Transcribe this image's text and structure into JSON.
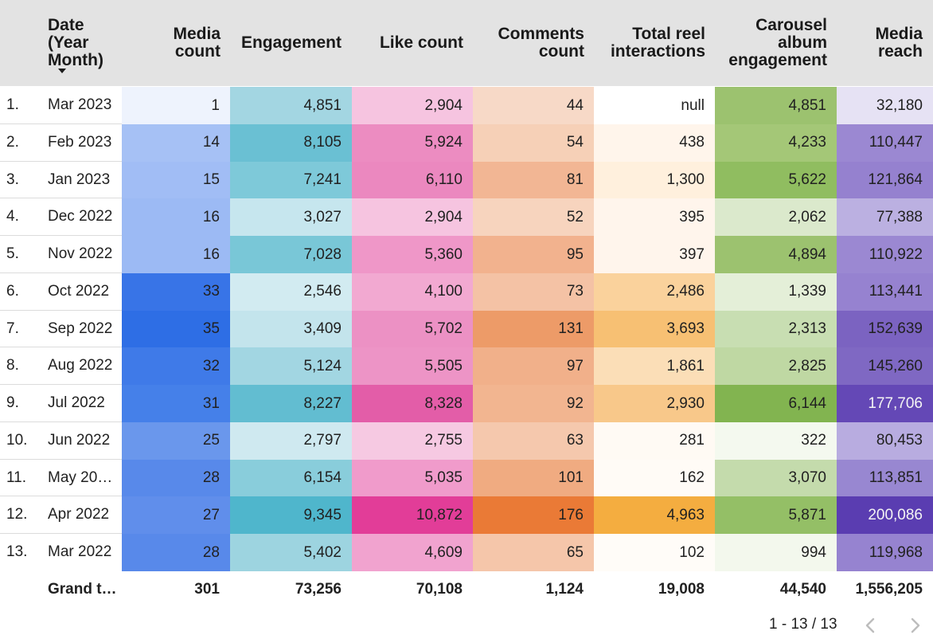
{
  "headers": {
    "date": "Date\n(Year\nMonth)",
    "media_count": "Media\ncount",
    "engagement": "Engagement",
    "like_count": "Like count",
    "comments_count": "Comments\ncount",
    "total_reel_interactions": "Total reel\ninteractions",
    "carousel_album_engagement": "Carousel\nalbum\nengagement",
    "media_reach": "Media\nreach"
  },
  "columns": [
    "media_count",
    "engagement",
    "like_count",
    "comments_count",
    "total_reel_interactions",
    "carousel_album_engagement",
    "media_reach"
  ],
  "rows": [
    {
      "index": "1.",
      "date": "Mar 2023",
      "media_count": "1",
      "engagement": "4,851",
      "like_count": "2,904",
      "comments_count": "44",
      "total_reel_interactions": "null",
      "carousel_album_engagement": "4,851",
      "media_reach": "32,180"
    },
    {
      "index": "2.",
      "date": "Feb 2023",
      "media_count": "14",
      "engagement": "8,105",
      "like_count": "5,924",
      "comments_count": "54",
      "total_reel_interactions": "438",
      "carousel_album_engagement": "4,233",
      "media_reach": "110,447"
    },
    {
      "index": "3.",
      "date": "Jan 2023",
      "media_count": "15",
      "engagement": "7,241",
      "like_count": "6,110",
      "comments_count": "81",
      "total_reel_interactions": "1,300",
      "carousel_album_engagement": "5,622",
      "media_reach": "121,864"
    },
    {
      "index": "4.",
      "date": "Dec 2022",
      "media_count": "16",
      "engagement": "3,027",
      "like_count": "2,904",
      "comments_count": "52",
      "total_reel_interactions": "395",
      "carousel_album_engagement": "2,062",
      "media_reach": "77,388"
    },
    {
      "index": "5.",
      "date": "Nov 2022",
      "media_count": "16",
      "engagement": "7,028",
      "like_count": "5,360",
      "comments_count": "95",
      "total_reel_interactions": "397",
      "carousel_album_engagement": "4,894",
      "media_reach": "110,922"
    },
    {
      "index": "6.",
      "date": "Oct 2022",
      "media_count": "33",
      "engagement": "2,546",
      "like_count": "4,100",
      "comments_count": "73",
      "total_reel_interactions": "2,486",
      "carousel_album_engagement": "1,339",
      "media_reach": "113,441"
    },
    {
      "index": "7.",
      "date": "Sep 2022",
      "media_count": "35",
      "engagement": "3,409",
      "like_count": "5,702",
      "comments_count": "131",
      "total_reel_interactions": "3,693",
      "carousel_album_engagement": "2,313",
      "media_reach": "152,639"
    },
    {
      "index": "8.",
      "date": "Aug 2022",
      "media_count": "32",
      "engagement": "5,124",
      "like_count": "5,505",
      "comments_count": "97",
      "total_reel_interactions": "1,861",
      "carousel_album_engagement": "2,825",
      "media_reach": "145,260"
    },
    {
      "index": "9.",
      "date": "Jul 2022",
      "media_count": "31",
      "engagement": "8,227",
      "like_count": "8,328",
      "comments_count": "92",
      "total_reel_interactions": "2,930",
      "carousel_album_engagement": "6,144",
      "media_reach": "177,706"
    },
    {
      "index": "10.",
      "date": "Jun 2022",
      "media_count": "25",
      "engagement": "2,797",
      "like_count": "2,755",
      "comments_count": "63",
      "total_reel_interactions": "281",
      "carousel_album_engagement": "322",
      "media_reach": "80,453"
    },
    {
      "index": "11.",
      "date": "May 20…",
      "media_count": "28",
      "engagement": "6,154",
      "like_count": "5,035",
      "comments_count": "101",
      "total_reel_interactions": "162",
      "carousel_album_engagement": "3,070",
      "media_reach": "113,851"
    },
    {
      "index": "12.",
      "date": "Apr 2022",
      "media_count": "27",
      "engagement": "9,345",
      "like_count": "10,872",
      "comments_count": "176",
      "total_reel_interactions": "4,963",
      "carousel_album_engagement": "5,871",
      "media_reach": "200,086"
    },
    {
      "index": "13.",
      "date": "Mar 2022",
      "media_count": "28",
      "engagement": "5,402",
      "like_count": "4,609",
      "comments_count": "65",
      "total_reel_interactions": "102",
      "carousel_album_engagement": "994",
      "media_reach": "119,968"
    }
  ],
  "cell_colors": [
    [
      "#eef3fd",
      "#a3d6e2",
      "#f6c4e0",
      "#f7d9c7",
      "#ffffff",
      "#9cc26f",
      "#e6e2f4"
    ],
    [
      "#a6c1f5",
      "#6ac0d3",
      "#ec8cc1",
      "#f6d0b7",
      "#fff5eb",
      "#a4c777",
      "#9b88d2"
    ],
    [
      "#a1bdf5",
      "#7ec9d9",
      "#eb88bf",
      "#f2b694",
      "#fff0dd",
      "#90bd60",
      "#9581cf"
    ],
    [
      "#9cbaf4",
      "#c6e6ee",
      "#f6c4e0",
      "#f7d4be",
      "#fff5ec",
      "#dbe9cc",
      "#bbb0e1"
    ],
    [
      "#9cbaf4",
      "#79c7d7",
      "#ef97c8",
      "#f2b28e",
      "#fff5ec",
      "#9cc26f",
      "#9b88d2"
    ],
    [
      "#3874e7",
      "#d2ebf1",
      "#f2a9d1",
      "#f4c2a5",
      "#fad29c",
      "#e4efd8",
      "#9682d0"
    ],
    [
      "#2e6ee5",
      "#c3e4ec",
      "#ec91c4",
      "#ed9b68",
      "#f7c073",
      "#c8deb2",
      "#7b63c1"
    ],
    [
      "#3f7ae8",
      "#a2d6e2",
      "#ed94c6",
      "#f1b08a",
      "#fbdeb7",
      "#bfd8a3",
      "#7f68c3"
    ],
    [
      "#4580e9",
      "#62bdd1",
      "#e35da8",
      "#f2b590",
      "#f8c88a",
      "#82b450",
      "#6448b6"
    ],
    [
      "#6a97ec",
      "#cfe9f0",
      "#f6c9e2",
      "#f5c8ad",
      "#fffaf4",
      "#f4f9ef",
      "#b8ace0"
    ],
    [
      "#5889ea",
      "#89cddb",
      "#f09bcb",
      "#f0ab81",
      "#fffbf6",
      "#c4dbac",
      "#9887d1"
    ],
    [
      "#608eeb",
      "#4fb6cc",
      "#e23d98",
      "#ea7a36",
      "#f4ad40",
      "#94bf66",
      "#5a3db1"
    ],
    [
      "#5889ea",
      "#9dd4e0",
      "#f1a3cf",
      "#f5c6aa",
      "#fffcf8",
      "#f3f8ed",
      "#9683d0"
    ]
  ],
  "light_text_cells": [
    [
      8,
      6
    ],
    [
      11,
      6
    ]
  ],
  "grand_total": {
    "label": "Grand t…",
    "media_count": "301",
    "engagement": "73,256",
    "like_count": "70,108",
    "comments_count": "1,124",
    "total_reel_interactions": "19,008",
    "carousel_album_engagement": "44,540",
    "media_reach": "1,556,205"
  },
  "pagination": {
    "range": "1 - 13 / 13"
  },
  "icons": {
    "sort": "sort-descending-icon",
    "prev": "chevron-left-icon",
    "next": "chevron-right-icon"
  }
}
